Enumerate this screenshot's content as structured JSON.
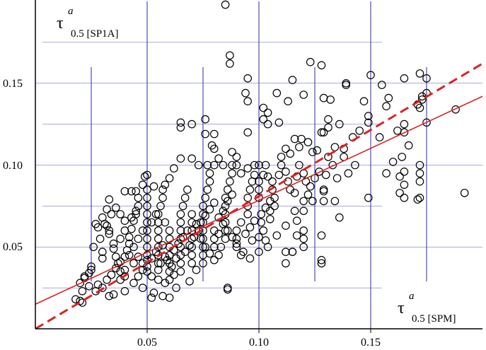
{
  "chart_data": {
    "type": "scatter",
    "title": "",
    "xlabel": {
      "symbol": "τ",
      "sup": "a",
      "sub": "0.5 [SPM]"
    },
    "ylabel": {
      "symbol": "τ",
      "sup": "a",
      "sub": "0.5 [SP1A]"
    },
    "xlim": [
      0.0,
      0.2
    ],
    "ylim": [
      0.0,
      0.2
    ],
    "x_ticks": [
      "0.05",
      "0.10",
      "0.15"
    ],
    "x_tick_values": [
      0.05,
      0.1,
      0.15
    ],
    "y_ticks": [
      "0.05",
      "0.10",
      "0.15"
    ],
    "y_tick_values": [
      0.05,
      0.1,
      0.15
    ],
    "minor_x_grid": [
      0.025,
      0.075,
      0.125,
      0.175
    ],
    "minor_y_grid": [
      0.025,
      0.075,
      0.125,
      0.175
    ],
    "grid": true,
    "colors": {
      "points": "#000000",
      "fit_lines": "#dd2222",
      "grid": "#2a2aa8"
    },
    "lines": [
      {
        "style": "dashed",
        "x": [
          0.0,
          0.2
        ],
        "y": [
          0.0,
          0.162
        ]
      },
      {
        "style": "solid",
        "x": [
          0.0,
          0.2
        ],
        "y": [
          0.015,
          0.142
        ]
      }
    ],
    "points": [
      [
        0.085,
        0.198
      ],
      [
        0.087,
        0.167
      ],
      [
        0.087,
        0.162
      ],
      [
        0.123,
        0.163
      ],
      [
        0.128,
        0.161
      ],
      [
        0.095,
        0.153
      ],
      [
        0.115,
        0.152
      ],
      [
        0.165,
        0.153
      ],
      [
        0.172,
        0.156
      ],
      [
        0.175,
        0.153
      ],
      [
        0.15,
        0.155
      ],
      [
        0.155,
        0.149
      ],
      [
        0.139,
        0.149
      ],
      [
        0.139,
        0.15
      ],
      [
        0.132,
        0.14
      ],
      [
        0.129,
        0.141
      ],
      [
        0.12,
        0.143
      ],
      [
        0.113,
        0.139
      ],
      [
        0.094,
        0.144
      ],
      [
        0.095,
        0.139
      ],
      [
        0.108,
        0.144
      ],
      [
        0.104,
        0.132
      ],
      [
        0.102,
        0.135
      ],
      [
        0.109,
        0.126
      ],
      [
        0.104,
        0.125
      ],
      [
        0.102,
        0.128
      ],
      [
        0.095,
        0.12
      ],
      [
        0.065,
        0.126
      ],
      [
        0.07,
        0.125
      ],
      [
        0.065,
        0.123
      ],
      [
        0.076,
        0.128
      ],
      [
        0.08,
        0.119
      ],
      [
        0.079,
        0.112
      ],
      [
        0.076,
        0.119
      ],
      [
        0.08,
        0.11
      ],
      [
        0.147,
        0.139
      ],
      [
        0.149,
        0.13
      ],
      [
        0.149,
        0.126
      ],
      [
        0.145,
        0.121
      ],
      [
        0.136,
        0.125
      ],
      [
        0.131,
        0.128
      ],
      [
        0.131,
        0.123
      ],
      [
        0.129,
        0.12
      ],
      [
        0.128,
        0.12
      ],
      [
        0.122,
        0.114
      ],
      [
        0.119,
        0.116
      ],
      [
        0.116,
        0.116
      ],
      [
        0.118,
        0.111
      ],
      [
        0.114,
        0.107
      ],
      [
        0.124,
        0.108
      ],
      [
        0.126,
        0.109
      ],
      [
        0.138,
        0.11
      ],
      [
        0.142,
        0.117
      ],
      [
        0.154,
        0.117
      ],
      [
        0.157,
        0.136
      ],
      [
        0.158,
        0.141
      ],
      [
        0.171,
        0.137
      ],
      [
        0.172,
        0.135
      ],
      [
        0.173,
        0.142
      ],
      [
        0.173,
        0.14
      ],
      [
        0.175,
        0.144
      ],
      [
        0.175,
        0.126
      ],
      [
        0.165,
        0.125
      ],
      [
        0.165,
        0.12
      ],
      [
        0.167,
        0.112
      ],
      [
        0.162,
        0.121
      ],
      [
        0.16,
        0.102
      ],
      [
        0.164,
        0.105
      ],
      [
        0.165,
        0.096
      ],
      [
        0.163,
        0.093
      ],
      [
        0.165,
        0.088
      ],
      [
        0.163,
        0.083
      ],
      [
        0.165,
        0.08
      ],
      [
        0.171,
        0.079
      ],
      [
        0.172,
        0.08
      ],
      [
        0.172,
        0.09
      ],
      [
        0.172,
        0.1
      ],
      [
        0.172,
        0.095
      ],
      [
        0.188,
        0.134
      ],
      [
        0.192,
        0.083
      ],
      [
        0.157,
        0.095
      ],
      [
        0.149,
        0.08
      ],
      [
        0.138,
        0.105
      ],
      [
        0.134,
        0.111
      ],
      [
        0.129,
        0.085
      ],
      [
        0.129,
        0.084
      ],
      [
        0.129,
        0.078
      ],
      [
        0.134,
        0.078
      ],
      [
        0.136,
        0.068
      ],
      [
        0.128,
        0.057
      ],
      [
        0.128,
        0.042
      ],
      [
        0.128,
        0.04
      ],
      [
        0.12,
        0.072
      ],
      [
        0.12,
        0.078
      ],
      [
        0.116,
        0.072
      ],
      [
        0.122,
        0.082
      ],
      [
        0.124,
        0.078
      ],
      [
        0.12,
        0.06
      ],
      [
        0.12,
        0.055
      ],
      [
        0.12,
        0.05
      ],
      [
        0.117,
        0.066
      ],
      [
        0.117,
        0.057
      ],
      [
        0.115,
        0.047
      ],
      [
        0.115,
        0.047
      ],
      [
        0.112,
        0.047
      ],
      [
        0.112,
        0.04
      ],
      [
        0.112,
        0.063
      ],
      [
        0.108,
        0.057
      ],
      [
        0.105,
        0.067
      ],
      [
        0.105,
        0.072
      ],
      [
        0.101,
        0.065
      ],
      [
        0.102,
        0.06
      ],
      [
        0.103,
        0.054
      ],
      [
        0.104,
        0.05
      ],
      [
        0.1,
        0.056
      ],
      [
        0.097,
        0.054
      ],
      [
        0.096,
        0.043
      ],
      [
        0.093,
        0.047
      ],
      [
        0.1,
        0.047
      ],
      [
        0.086,
        0.024
      ],
      [
        0.086,
        0.025
      ],
      [
        0.069,
        0.029
      ],
      [
        0.063,
        0.025
      ],
      [
        0.06,
        0.019
      ],
      [
        0.052,
        0.019
      ],
      [
        0.053,
        0.022
      ],
      [
        0.057,
        0.02
      ],
      [
        0.058,
        0.028
      ],
      [
        0.06,
        0.03
      ],
      [
        0.048,
        0.025
      ],
      [
        0.04,
        0.023
      ],
      [
        0.035,
        0.021
      ],
      [
        0.033,
        0.02
      ],
      [
        0.027,
        0.023
      ],
      [
        0.024,
        0.026
      ],
      [
        0.021,
        0.023
      ],
      [
        0.021,
        0.016
      ],
      [
        0.02,
        0.017
      ],
      [
        0.018,
        0.018
      ],
      [
        0.02,
        0.028
      ],
      [
        0.022,
        0.032
      ],
      [
        0.025,
        0.038
      ],
      [
        0.025,
        0.036
      ],
      [
        0.026,
        0.05
      ],
      [
        0.027,
        0.064
      ],
      [
        0.029,
        0.055
      ],
      [
        0.03,
        0.047
      ],
      [
        0.03,
        0.043
      ],
      [
        0.032,
        0.063
      ],
      [
        0.031,
        0.064
      ],
      [
        0.034,
        0.07
      ],
      [
        0.033,
        0.06
      ],
      [
        0.033,
        0.058
      ],
      [
        0.035,
        0.052
      ],
      [
        0.035,
        0.049
      ],
      [
        0.036,
        0.044
      ],
      [
        0.037,
        0.04
      ],
      [
        0.038,
        0.035
      ],
      [
        0.038,
        0.03
      ],
      [
        0.04,
        0.032
      ],
      [
        0.04,
        0.036
      ],
      [
        0.04,
        0.044
      ],
      [
        0.041,
        0.048
      ],
      [
        0.042,
        0.052
      ],
      [
        0.042,
        0.056
      ],
      [
        0.043,
        0.061
      ],
      [
        0.044,
        0.066
      ],
      [
        0.045,
        0.07
      ],
      [
        0.046,
        0.075
      ],
      [
        0.046,
        0.08
      ],
      [
        0.045,
        0.084
      ],
      [
        0.049,
        0.093
      ],
      [
        0.05,
        0.094
      ],
      [
        0.05,
        0.085
      ],
      [
        0.05,
        0.08
      ],
      [
        0.05,
        0.075
      ],
      [
        0.05,
        0.07
      ],
      [
        0.05,
        0.065
      ],
      [
        0.05,
        0.06
      ],
      [
        0.05,
        0.055
      ],
      [
        0.05,
        0.05
      ],
      [
        0.05,
        0.045
      ],
      [
        0.05,
        0.042
      ],
      [
        0.05,
        0.038
      ],
      [
        0.05,
        0.035
      ],
      [
        0.052,
        0.032
      ],
      [
        0.055,
        0.03
      ],
      [
        0.055,
        0.036
      ],
      [
        0.055,
        0.04
      ],
      [
        0.055,
        0.045
      ],
      [
        0.055,
        0.05
      ],
      [
        0.055,
        0.055
      ],
      [
        0.055,
        0.06
      ],
      [
        0.055,
        0.065
      ],
      [
        0.055,
        0.07
      ],
      [
        0.056,
        0.075
      ],
      [
        0.057,
        0.08
      ],
      [
        0.058,
        0.065
      ],
      [
        0.06,
        0.06
      ],
      [
        0.06,
        0.055
      ],
      [
        0.06,
        0.05
      ],
      [
        0.06,
        0.045
      ],
      [
        0.06,
        0.04
      ],
      [
        0.06,
        0.035
      ],
      [
        0.062,
        0.033
      ],
      [
        0.065,
        0.035
      ],
      [
        0.065,
        0.04
      ],
      [
        0.065,
        0.045
      ],
      [
        0.065,
        0.05
      ],
      [
        0.065,
        0.055
      ],
      [
        0.065,
        0.06
      ],
      [
        0.065,
        0.065
      ],
      [
        0.065,
        0.07
      ],
      [
        0.066,
        0.075
      ],
      [
        0.067,
        0.08
      ],
      [
        0.068,
        0.085
      ],
      [
        0.07,
        0.07
      ],
      [
        0.07,
        0.065
      ],
      [
        0.07,
        0.06
      ],
      [
        0.07,
        0.055
      ],
      [
        0.07,
        0.05
      ],
      [
        0.07,
        0.045
      ],
      [
        0.07,
        0.04
      ],
      [
        0.072,
        0.036
      ],
      [
        0.075,
        0.04
      ],
      [
        0.075,
        0.045
      ],
      [
        0.075,
        0.05
      ],
      [
        0.075,
        0.055
      ],
      [
        0.075,
        0.06
      ],
      [
        0.075,
        0.065
      ],
      [
        0.075,
        0.07
      ],
      [
        0.075,
        0.075
      ],
      [
        0.076,
        0.08
      ],
      [
        0.077,
        0.085
      ],
      [
        0.078,
        0.09
      ],
      [
        0.078,
        0.095
      ],
      [
        0.08,
        0.06
      ],
      [
        0.08,
        0.055
      ],
      [
        0.08,
        0.05
      ],
      [
        0.082,
        0.045
      ],
      [
        0.083,
        0.05
      ],
      [
        0.085,
        0.055
      ],
      [
        0.085,
        0.06
      ],
      [
        0.085,
        0.065
      ],
      [
        0.085,
        0.07
      ],
      [
        0.085,
        0.075
      ],
      [
        0.085,
        0.08
      ],
      [
        0.086,
        0.085
      ],
      [
        0.087,
        0.09
      ],
      [
        0.088,
        0.095
      ],
      [
        0.088,
        0.1
      ],
      [
        0.09,
        0.06
      ],
      [
        0.09,
        0.055
      ],
      [
        0.09,
        0.05
      ],
      [
        0.092,
        0.045
      ],
      [
        0.092,
        0.065
      ],
      [
        0.095,
        0.07
      ],
      [
        0.095,
        0.075
      ],
      [
        0.095,
        0.08
      ],
      [
        0.096,
        0.085
      ],
      [
        0.097,
        0.09
      ],
      [
        0.098,
        0.094
      ],
      [
        0.1,
        0.09
      ],
      [
        0.1,
        0.085
      ],
      [
        0.1,
        0.08
      ],
      [
        0.102,
        0.094
      ],
      [
        0.103,
        0.1
      ],
      [
        0.104,
        0.093
      ],
      [
        0.106,
        0.085
      ],
      [
        0.107,
        0.08
      ],
      [
        0.107,
        0.075
      ],
      [
        0.109,
        0.094
      ],
      [
        0.11,
        0.1
      ],
      [
        0.112,
        0.096
      ],
      [
        0.113,
        0.09
      ],
      [
        0.114,
        0.085
      ],
      [
        0.116,
        0.083
      ],
      [
        0.117,
        0.093
      ],
      [
        0.118,
        0.1
      ],
      [
        0.12,
        0.095
      ],
      [
        0.121,
        0.09
      ],
      [
        0.123,
        0.087
      ],
      [
        0.125,
        0.092
      ],
      [
        0.127,
        0.096
      ],
      [
        0.13,
        0.094
      ],
      [
        0.131,
        0.105
      ],
      [
        0.133,
        0.1
      ],
      [
        0.135,
        0.092
      ],
      [
        0.14,
        0.095
      ],
      [
        0.143,
        0.1
      ],
      [
        0.106,
        0.09
      ],
      [
        0.112,
        0.11
      ],
      [
        0.11,
        0.105
      ],
      [
        0.1,
        0.1
      ],
      [
        0.098,
        0.1
      ],
      [
        0.095,
        0.098
      ],
      [
        0.092,
        0.095
      ],
      [
        0.09,
        0.1
      ],
      [
        0.09,
        0.105
      ],
      [
        0.088,
        0.108
      ],
      [
        0.084,
        0.1
      ],
      [
        0.082,
        0.104
      ],
      [
        0.08,
        0.1
      ],
      [
        0.077,
        0.1
      ],
      [
        0.073,
        0.1
      ],
      [
        0.07,
        0.104
      ],
      [
        0.065,
        0.104
      ],
      [
        0.062,
        0.098
      ],
      [
        0.06,
        0.092
      ],
      [
        0.058,
        0.088
      ],
      [
        0.057,
        0.085
      ],
      [
        0.053,
        0.087
      ],
      [
        0.048,
        0.088
      ],
      [
        0.045,
        0.072
      ],
      [
        0.043,
        0.068
      ],
      [
        0.04,
        0.066
      ],
      [
        0.038,
        0.07
      ],
      [
        0.036,
        0.074
      ],
      [
        0.033,
        0.079
      ],
      [
        0.032,
        0.073
      ],
      [
        0.03,
        0.068
      ],
      [
        0.028,
        0.062
      ],
      [
        0.04,
        0.084
      ],
      [
        0.043,
        0.084
      ],
      [
        0.022,
        0.031
      ],
      [
        0.024,
        0.034
      ],
      [
        0.028,
        0.027
      ],
      [
        0.03,
        0.025
      ],
      [
        0.032,
        0.03
      ],
      [
        0.034,
        0.033
      ],
      [
        0.036,
        0.037
      ],
      [
        0.038,
        0.041
      ],
      [
        0.044,
        0.028
      ],
      [
        0.046,
        0.032
      ],
      [
        0.048,
        0.036
      ],
      [
        0.048,
        0.04
      ],
      [
        0.052,
        0.043
      ],
      [
        0.054,
        0.047
      ],
      [
        0.057,
        0.051
      ],
      [
        0.059,
        0.042
      ],
      [
        0.061,
        0.038
      ],
      [
        0.063,
        0.043
      ],
      [
        0.067,
        0.047
      ],
      [
        0.069,
        0.051
      ],
      [
        0.071,
        0.056
      ],
      [
        0.073,
        0.06
      ],
      [
        0.074,
        0.065
      ],
      [
        0.076,
        0.069
      ],
      [
        0.078,
        0.073
      ],
      [
        0.08,
        0.077
      ],
      [
        0.082,
        0.068
      ],
      [
        0.084,
        0.064
      ],
      [
        0.086,
        0.06
      ],
      [
        0.088,
        0.056
      ],
      [
        0.09,
        0.052
      ],
      [
        0.094,
        0.058
      ],
      [
        0.096,
        0.062
      ],
      [
        0.098,
        0.066
      ],
      [
        0.101,
        0.07
      ],
      [
        0.103,
        0.074
      ],
      [
        0.105,
        0.078
      ],
      [
        0.038,
        0.055
      ],
      [
        0.04,
        0.06
      ],
      [
        0.042,
        0.045
      ],
      [
        0.044,
        0.04
      ],
      [
        0.046,
        0.044
      ],
      [
        0.044,
        0.05
      ],
      [
        0.046,
        0.055
      ],
      [
        0.048,
        0.06
      ],
      [
        0.052,
        0.065
      ],
      [
        0.054,
        0.07
      ],
      [
        0.056,
        0.04
      ],
      [
        0.058,
        0.044
      ],
      [
        0.062,
        0.048
      ],
      [
        0.064,
        0.052
      ],
      [
        0.066,
        0.056
      ],
      [
        0.068,
        0.06
      ],
      [
        0.072,
        0.064
      ],
      [
        0.074,
        0.055
      ],
      [
        0.076,
        0.05
      ],
      [
        0.078,
        0.046
      ],
      [
        0.08,
        0.042
      ],
      [
        0.082,
        0.058
      ],
      [
        0.084,
        0.072
      ],
      [
        0.086,
        0.078
      ],
      [
        0.088,
        0.082
      ]
    ]
  }
}
